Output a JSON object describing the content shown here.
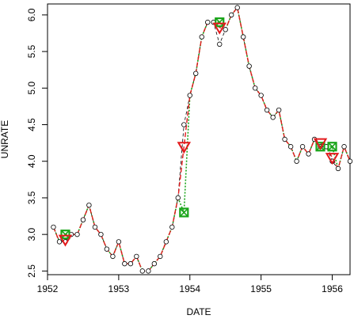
{
  "chart_data": {
    "type": "line",
    "title": "",
    "xlabel": "DATE",
    "ylabel": "UNRATE",
    "xlim": [
      1952.0,
      1956.25
    ],
    "ylim": [
      2.45,
      6.15
    ],
    "x_ticks": [
      1952,
      1953,
      1954,
      1955,
      1956
    ],
    "y_ticks": [
      2.5,
      3.0,
      3.5,
      4.0,
      4.5,
      5.0,
      5.5,
      6.0
    ],
    "x_tick_labels": [
      "1952",
      "1953",
      "1954",
      "1955",
      "1956"
    ],
    "y_tick_labels": [
      "2.5",
      "3.0",
      "3.5",
      "4.0",
      "4.5",
      "5.0",
      "5.5",
      "6.0"
    ],
    "grid": false,
    "colors": {
      "points": "#000000",
      "red_line": "#e31a1c",
      "green_line": "#1aa51a",
      "frame": "#000000"
    },
    "series": [
      {
        "style": "open-circle-points",
        "x": [
          1952.083,
          1952.167,
          1952.25,
          1952.333,
          1952.417,
          1952.5,
          1952.583,
          1952.667,
          1952.75,
          1952.833,
          1952.917,
          1953.0,
          1953.083,
          1953.167,
          1953.25,
          1953.333,
          1953.417,
          1953.5,
          1953.583,
          1953.667,
          1953.75,
          1953.833,
          1953.917,
          1954.0,
          1954.083,
          1954.167,
          1954.25,
          1954.333,
          1954.417,
          1954.5,
          1954.583,
          1954.667,
          1954.75,
          1954.833,
          1954.917,
          1955.0,
          1955.083,
          1955.167,
          1955.25,
          1955.333,
          1955.417,
          1955.5,
          1955.583,
          1955.667,
          1955.75,
          1955.833,
          1955.917,
          1956.0,
          1956.083,
          1956.167,
          1956.25
        ],
        "y": [
          3.1,
          2.9,
          2.9,
          3.0,
          3.0,
          3.2,
          3.4,
          3.1,
          3.0,
          2.8,
          2.7,
          2.9,
          2.6,
          2.6,
          2.7,
          2.5,
          2.5,
          2.6,
          2.7,
          2.9,
          3.1,
          3.5,
          4.5,
          4.9,
          5.2,
          5.7,
          5.9,
          5.9,
          5.6,
          5.8,
          6.0,
          6.1,
          5.7,
          5.3,
          5.0,
          4.9,
          4.7,
          4.6,
          4.7,
          4.3,
          4.2,
          4.0,
          4.2,
          4.1,
          4.3,
          4.2,
          4.2,
          4.0,
          3.9,
          4.2,
          4.0
        ]
      },
      {
        "style": "red-dashed-line",
        "x": [
          1952.083,
          1952.167,
          1952.25,
          1952.333,
          1952.417,
          1952.5,
          1952.583,
          1952.667,
          1952.75,
          1952.833,
          1952.917,
          1953.0,
          1953.083,
          1953.167,
          1953.25,
          1953.333,
          1953.417,
          1953.5,
          1953.583,
          1953.667,
          1953.75,
          1953.833,
          1953.917,
          1954.0,
          1954.083,
          1954.167,
          1954.25,
          1954.333,
          1954.417,
          1954.5,
          1954.583,
          1954.667,
          1954.75,
          1954.833,
          1954.917,
          1955.0,
          1955.083,
          1955.167,
          1955.25,
          1955.333,
          1955.417,
          1955.5,
          1955.583,
          1955.667,
          1955.75,
          1955.833,
          1955.917,
          1956.0,
          1956.083,
          1956.167,
          1956.25
        ],
        "y": [
          3.1,
          2.9,
          2.93,
          3.0,
          3.0,
          3.2,
          3.4,
          3.1,
          3.0,
          2.8,
          2.7,
          2.9,
          2.6,
          2.6,
          2.7,
          2.5,
          2.5,
          2.6,
          2.7,
          2.9,
          3.1,
          3.5,
          4.2,
          4.9,
          5.2,
          5.7,
          5.9,
          5.9,
          5.83,
          5.8,
          6.0,
          6.1,
          5.7,
          5.3,
          5.0,
          4.9,
          4.7,
          4.6,
          4.7,
          4.3,
          4.2,
          4.0,
          4.2,
          4.1,
          4.3,
          4.25,
          4.2,
          4.05,
          3.9,
          4.2,
          4.0
        ]
      },
      {
        "style": "green-dotted-line",
        "x": [
          1952.083,
          1952.167,
          1952.25,
          1952.333,
          1952.417,
          1952.5,
          1952.583,
          1952.667,
          1952.75,
          1952.833,
          1952.917,
          1953.0,
          1953.083,
          1953.167,
          1953.25,
          1953.333,
          1953.417,
          1953.5,
          1953.583,
          1953.667,
          1953.75,
          1953.833,
          1953.917,
          1954.0,
          1954.083,
          1954.167,
          1954.25,
          1954.333,
          1954.417,
          1954.5,
          1954.583,
          1954.667,
          1954.75,
          1954.833,
          1954.917,
          1955.0,
          1955.083,
          1955.167,
          1955.25,
          1955.333,
          1955.417,
          1955.5,
          1955.583,
          1955.667,
          1955.75,
          1955.833,
          1955.917,
          1956.0,
          1956.083,
          1956.167,
          1956.25
        ],
        "y": [
          3.1,
          2.9,
          3.0,
          3.0,
          3.0,
          3.2,
          3.4,
          3.1,
          3.0,
          2.8,
          2.7,
          2.9,
          2.6,
          2.6,
          2.7,
          2.5,
          2.5,
          2.6,
          2.7,
          2.9,
          3.1,
          3.5,
          3.3,
          4.9,
          5.2,
          5.7,
          5.9,
          5.9,
          5.9,
          5.8,
          6.0,
          6.1,
          5.7,
          5.3,
          5.0,
          4.9,
          4.7,
          4.6,
          4.7,
          4.3,
          4.2,
          4.0,
          4.2,
          4.1,
          4.3,
          4.2,
          4.2,
          4.2,
          3.9,
          4.2,
          4.0
        ]
      }
    ],
    "markers": {
      "red_triangles": [
        {
          "x": 1952.25,
          "y": 2.93
        },
        {
          "x": 1953.917,
          "y": 4.2
        },
        {
          "x": 1954.417,
          "y": 5.83
        },
        {
          "x": 1955.833,
          "y": 4.25
        },
        {
          "x": 1956.0,
          "y": 4.05
        }
      ],
      "green_boxes": [
        {
          "x": 1952.25,
          "y": 3.0
        },
        {
          "x": 1953.917,
          "y": 3.3
        },
        {
          "x": 1954.417,
          "y": 5.9
        },
        {
          "x": 1955.833,
          "y": 4.2
        },
        {
          "x": 1956.0,
          "y": 4.2
        }
      ]
    }
  }
}
